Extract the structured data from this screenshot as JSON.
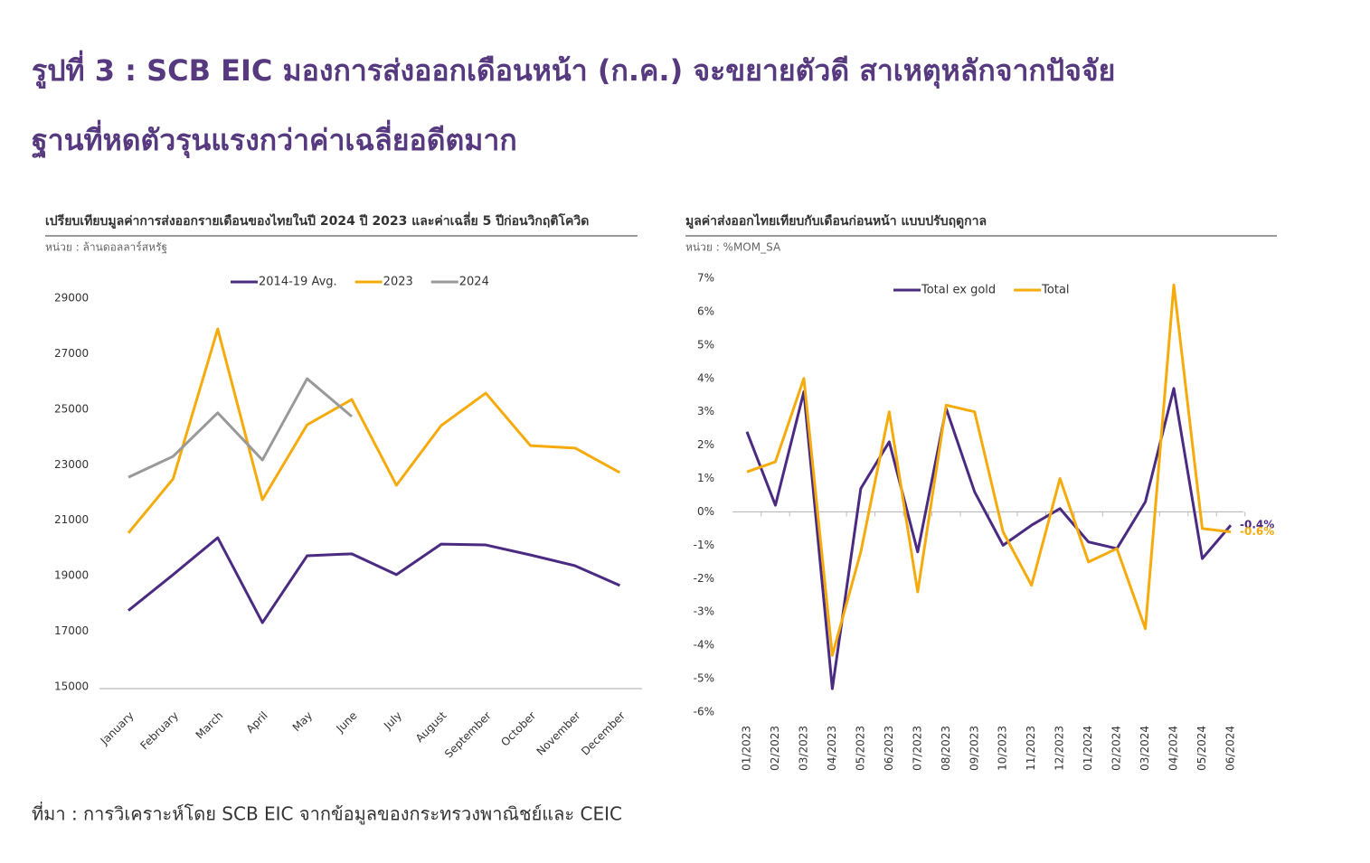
{
  "title_lines": [
    "รูปที่ 3 : SCB EIC มองการส่งออกเดือนหน้า (ก.ค.) จะขยายตัวดี สาเหตุหลักจากปัจจัย",
    "ฐานที่หดตัวรุนแรงกว่าค่าเฉลี่ยอดีตมาก"
  ],
  "chart_data": [
    {
      "type": "line",
      "title": "เปรียบเทียบมูลค่าการส่งออกรายเดือนของไทยในปี  2024 ปี 2023 และค่าเฉลี่ย 5 ปีก่อนวิกฤติโควิด",
      "subtitle": "หน่วย : ล้านดอลลาร์สหรัฐ",
      "categories": [
        "January",
        "February",
        "March",
        "April",
        "May",
        "June",
        "July",
        "August",
        "September",
        "October",
        "November",
        "December"
      ],
      "series": [
        {
          "name": "2014-19 Avg.",
          "color": "#4b2a82",
          "values": [
            17750,
            19040,
            20370,
            17310,
            19720,
            19790,
            19040,
            20140,
            20110,
            19750,
            19360,
            18650
          ]
        },
        {
          "name": "2023",
          "color": "#f5ab0c",
          "values": [
            20540,
            22490,
            27890,
            21740,
            24440,
            25350,
            22260,
            24410,
            25580,
            23690,
            23600,
            22720
          ]
        },
        {
          "name": "2024",
          "color": "#999999",
          "values": [
            22550,
            23300,
            24870,
            23170,
            26100,
            24740,
            null,
            null,
            null,
            null,
            null,
            null
          ]
        }
      ],
      "ylim": [
        15000,
        29000
      ],
      "yticks": [
        15000,
        17000,
        19000,
        21000,
        23000,
        25000,
        27000,
        29000
      ],
      "legend": "top"
    },
    {
      "type": "line",
      "title": "มูลค่าส่งออกไทยเทียบกับเดือนก่อนหน้า แบบปรับฤดูกาล",
      "subtitle": "หน่วย : %MOM_SA",
      "categories": [
        "01/2023",
        "02/2023",
        "03/2023",
        "04/2023",
        "05/2023",
        "06/2023",
        "07/2023",
        "08/2023",
        "09/2023",
        "10/2023",
        "11/2023",
        "12/2023",
        "01/2024",
        "02/2024",
        "03/2024",
        "04/2024",
        "05/2024",
        "06/2024"
      ],
      "series": [
        {
          "name": "Total ex gold",
          "color": "#4b2a82",
          "values": [
            2.4,
            0.2,
            3.6,
            -5.3,
            0.7,
            2.1,
            -1.2,
            3.1,
            0.6,
            -1.0,
            -0.4,
            0.1,
            -0.9,
            -1.1,
            0.3,
            3.7,
            -1.4,
            -0.4
          ],
          "value_labels": [
            null,
            null,
            null,
            null,
            null,
            null,
            null,
            null,
            null,
            null,
            null,
            null,
            null,
            null,
            null,
            null,
            null,
            "-0.4%"
          ]
        },
        {
          "name": "Total",
          "color": "#f5ab0c",
          "values": [
            1.2,
            1.5,
            4.0,
            -4.3,
            -1.2,
            3.0,
            -2.4,
            3.2,
            3.0,
            -0.6,
            -2.2,
            1.0,
            -1.5,
            -1.1,
            -3.5,
            6.8,
            -0.5,
            -0.6
          ],
          "value_labels": [
            null,
            null,
            null,
            null,
            null,
            null,
            null,
            null,
            null,
            null,
            null,
            null,
            null,
            null,
            null,
            null,
            null,
            "-0.6%"
          ]
        }
      ],
      "ylim": [
        -6,
        7
      ],
      "yticks": [
        {
          "value": -6,
          "label": "-6%"
        },
        {
          "value": -5,
          "label": "-5%"
        },
        {
          "value": -4,
          "label": "-4%"
        },
        {
          "value": -3,
          "label": "-3%"
        },
        {
          "value": -2,
          "label": "-2%"
        },
        {
          "value": -1,
          "label": "-1%"
        },
        {
          "value": 0,
          "label": "0%"
        },
        {
          "value": 1,
          "label": "1%"
        },
        {
          "value": 2,
          "label": "2%"
        },
        {
          "value": 3,
          "label": "3%"
        },
        {
          "value": 4,
          "label": "4%"
        },
        {
          "value": 5,
          "label": "5%"
        },
        {
          "value": 6,
          "label": "6%"
        },
        {
          "value": 7,
          "label": "7%"
        }
      ],
      "legend": "top"
    }
  ],
  "source": "ที่มา : การวิเคราะห์โดย SCB EIC จากข้อมูลของกระทรวงพาณิชย์และ CEIC"
}
